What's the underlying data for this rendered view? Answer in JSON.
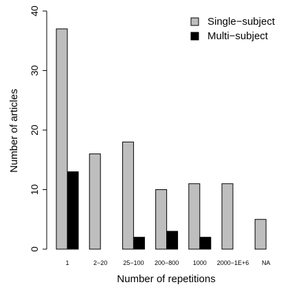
{
  "chart_data": {
    "type": "bar",
    "categories": [
      "1",
      "2−20",
      "25−100",
      "200−800",
      "1000",
      "2000−1E+6",
      "NA"
    ],
    "series": [
      {
        "name": "Single−subject",
        "values": [
          37,
          16,
          18,
          10,
          11,
          11,
          5
        ],
        "color": "#bebebe"
      },
      {
        "name": "Multi−subject",
        "values": [
          13,
          0,
          2,
          3,
          2,
          0,
          0
        ],
        "color": "#000000"
      }
    ],
    "title": "",
    "xlabel": "Number of repetitions",
    "ylabel": "Number of articles",
    "ylim": [
      0,
      40
    ],
    "yticks": [
      0,
      10,
      20,
      30,
      40
    ],
    "grid": false,
    "legend_position": "top-right"
  }
}
